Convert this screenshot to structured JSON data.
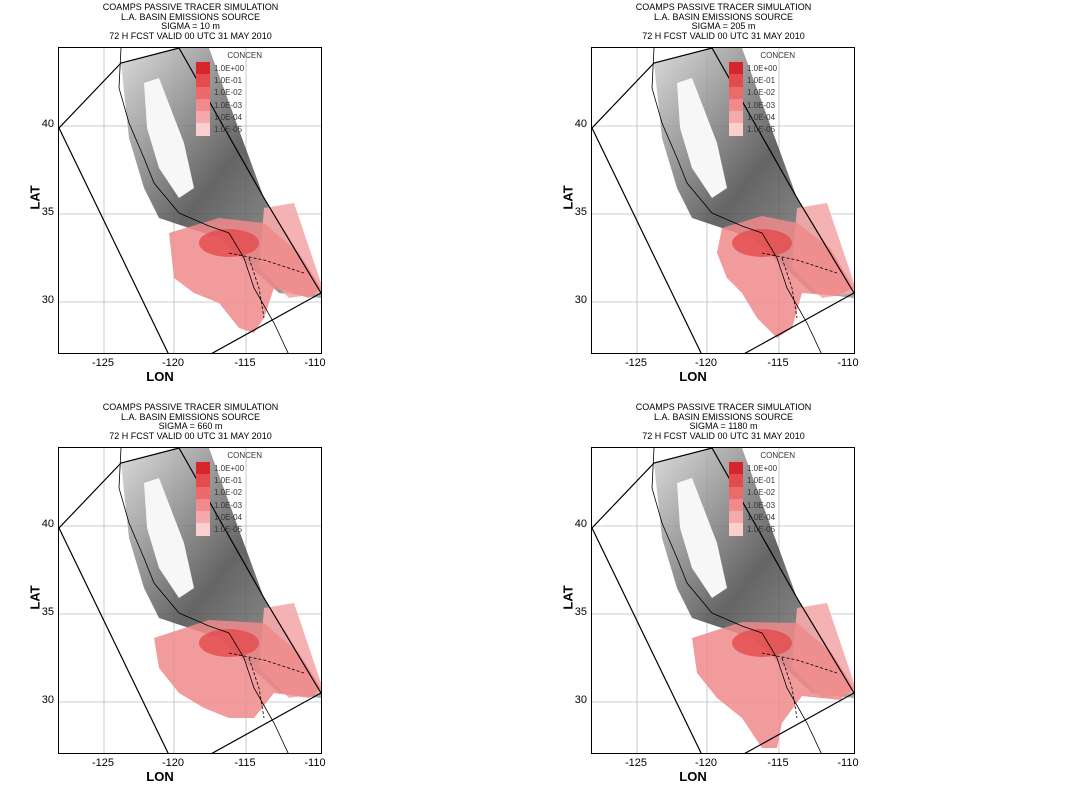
{
  "colors": {
    "levels": [
      "#d7262b",
      "#e44b4e",
      "#ec6a6c",
      "#f08a8b",
      "#f4aaaa",
      "#f9cfcf"
    ],
    "plume": "#f08a8b",
    "plume_dark": "#e44b4e",
    "terrain_dark": "#4a4a4a",
    "terrain_light": "#d5d5d5"
  },
  "axes": {
    "xlabel": "LON",
    "ylabel": "LAT",
    "xticks": [
      "-125",
      "-120",
      "-115",
      "-110"
    ],
    "yticks": [
      "40",
      "35",
      "30"
    ]
  },
  "legend": {
    "title": "CONCEN",
    "labels": [
      "1.0E+00",
      "1.0E-01",
      "1.0E-02",
      "1.0E-03",
      "1.0E-04",
      "1.0E-05"
    ]
  },
  "panels": [
    {
      "title_line1": "COAMPS PASSIVE TRACER SIMULATION",
      "title_line2": "L.A. BASIN EMISSIONS SOURCE",
      "title_line3": "SIGMA = 10 m",
      "title_line4": "72 H FCST VALID 00 UTC 31 MAY 2010"
    },
    {
      "title_line1": "COAMPS PASSIVE TRACER SIMULATION",
      "title_line2": "L.A. BASIN EMISSIONS SOURCE",
      "title_line3": "SIGMA = 205 m",
      "title_line4": "72 H FCST VALID 00 UTC 31 MAY 2010"
    },
    {
      "title_line1": "COAMPS PASSIVE TRACER SIMULATION",
      "title_line2": "L.A. BASIN EMISSIONS SOURCE",
      "title_line3": "SIGMA = 660 m",
      "title_line4": "72 H FCST VALID 00 UTC 31 MAY 2010"
    },
    {
      "title_line1": "COAMPS PASSIVE TRACER SIMULATION",
      "title_line2": "L.A. BASIN EMISSIONS SOURCE",
      "title_line3": "SIGMA = 1180 m",
      "title_line4": "72 H FCST VALID 00 UTC 31 MAY 2010"
    }
  ]
}
